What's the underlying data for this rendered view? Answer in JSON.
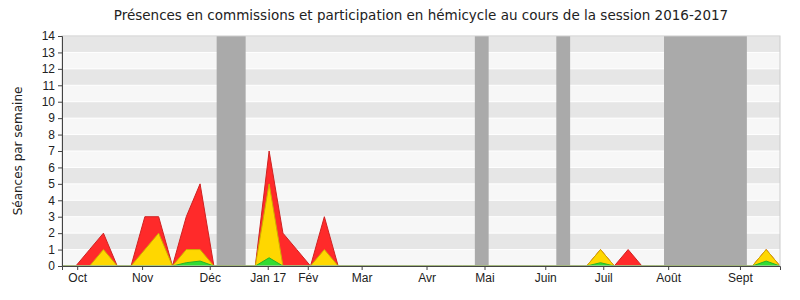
{
  "chart_data": {
    "type": "area",
    "title": "Présences en commissions et participation en hémicycle au cours de la session 2016-2017",
    "y_label": "Séances par semaine",
    "stacked": false,
    "grid": true,
    "x": [
      0,
      1,
      2,
      3,
      4,
      5,
      6,
      7,
      8,
      9,
      10,
      11,
      12,
      13,
      14,
      15,
      16,
      17,
      18,
      19,
      20,
      21,
      22,
      23,
      24,
      25,
      26,
      27,
      28,
      29,
      30,
      31,
      32,
      33,
      34,
      35,
      36,
      37,
      38,
      39,
      40,
      41,
      42,
      43,
      44,
      45,
      46,
      47,
      48,
      49,
      50,
      51,
      52
    ],
    "series": [
      {
        "color": "#ff2a2a",
        "values": [
          0,
          0,
          1,
          2,
          0,
          0,
          3,
          3,
          0,
          3,
          5,
          0,
          0,
          0,
          0,
          7,
          2,
          1,
          0,
          3,
          0,
          0,
          0,
          0,
          0,
          0,
          0,
          0,
          0,
          0,
          0,
          0,
          0,
          0,
          0,
          0,
          0,
          0,
          0,
          1,
          0,
          1,
          0,
          0,
          0,
          0,
          0,
          0,
          0,
          0,
          0,
          1,
          0
        ]
      },
      {
        "color": "#ffd700",
        "values": [
          0,
          0,
          0,
          1,
          0,
          0,
          1,
          2,
          0,
          1,
          1,
          0,
          0,
          0,
          0,
          5,
          0,
          0,
          0,
          1,
          0,
          0,
          0,
          0,
          0,
          0,
          0,
          0,
          0,
          0,
          0,
          0,
          0,
          0,
          0,
          0,
          0,
          0,
          0,
          1,
          0,
          0,
          0,
          0,
          0,
          0,
          0,
          0,
          0,
          0,
          0,
          1,
          0
        ]
      },
      {
        "color": "#33dd33",
        "values": [
          0,
          0,
          0,
          0,
          0,
          0,
          0,
          0,
          0,
          0.2,
          0.3,
          0,
          0,
          0,
          0,
          0.5,
          0,
          0,
          0,
          0,
          0,
          0,
          0,
          0,
          0,
          0,
          0,
          0,
          0,
          0,
          0,
          0,
          0,
          0,
          0,
          0,
          0,
          0,
          0,
          0.2,
          0,
          0,
          0,
          0,
          0,
          0,
          0,
          0,
          0,
          0,
          0,
          0.3,
          0
        ]
      }
    ],
    "shaded_ranges": [
      [
        11.2,
        13.3
      ],
      [
        29.9,
        30.9
      ],
      [
        35.8,
        36.8
      ],
      [
        43.6,
        49.6
      ]
    ],
    "xlim": [
      0,
      52
    ],
    "xticks": [
      {
        "value": 1.1,
        "label": "Oct"
      },
      {
        "value": 5.8,
        "label": "Nov"
      },
      {
        "value": 10.7,
        "label": "Déc"
      },
      {
        "value": 14.9,
        "label": "Jan 17"
      },
      {
        "value": 17.8,
        "label": "Fév"
      },
      {
        "value": 21.7,
        "label": "Mar"
      },
      {
        "value": 26.4,
        "label": "Avr"
      },
      {
        "value": 30.6,
        "label": "Mai"
      },
      {
        "value": 35.0,
        "label": "Juin"
      },
      {
        "value": 39.2,
        "label": "Juil"
      },
      {
        "value": 43.9,
        "label": "Août"
      },
      {
        "value": 49.1,
        "label": "Sept"
      }
    ],
    "ylim": [
      0,
      14
    ],
    "yticks": [
      0,
      1,
      2,
      3,
      4,
      5,
      6,
      7,
      8,
      9,
      10,
      11,
      12,
      13,
      14
    ]
  }
}
